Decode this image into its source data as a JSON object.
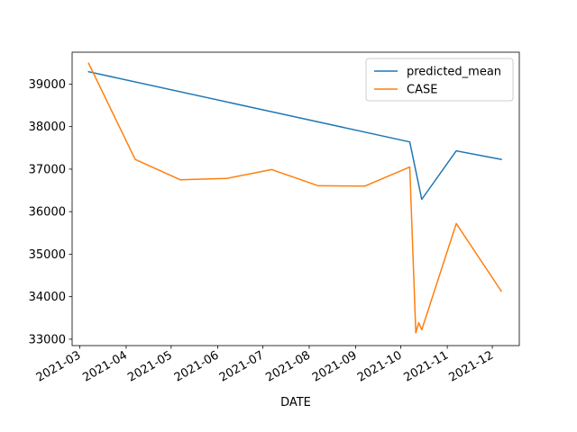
{
  "chart_data": {
    "type": "line",
    "xlabel": "DATE",
    "ylabel": "",
    "title": "",
    "x_ticks": [
      "2021-03",
      "2021-04",
      "2021-05",
      "2021-06",
      "2021-07",
      "2021-08",
      "2021-09",
      "2021-10",
      "2021-11",
      "2021-12"
    ],
    "y_ticks": [
      33000,
      34000,
      35000,
      36000,
      37000,
      38000,
      39000
    ],
    "xlim": [
      "2021-02-24",
      "2021-12-19"
    ],
    "ylim": [
      32850,
      39750
    ],
    "grid": false,
    "legend_position": "top-right",
    "series": [
      {
        "name": "predicted_mean",
        "color": "#1f77b4",
        "points": [
          [
            "2021-03-07",
            39290
          ],
          [
            "2021-10-07",
            37640
          ],
          [
            "2021-10-15",
            36290
          ],
          [
            "2021-11-07",
            37430
          ],
          [
            "2021-12-07",
            37230
          ]
        ]
      },
      {
        "name": "CASE",
        "color": "#ff7f0e",
        "points": [
          [
            "2021-03-07",
            39490
          ],
          [
            "2021-04-07",
            37230
          ],
          [
            "2021-05-07",
            36750
          ],
          [
            "2021-06-07",
            36780
          ],
          [
            "2021-07-07",
            36990
          ],
          [
            "2021-08-07",
            36610
          ],
          [
            "2021-09-07",
            36600
          ],
          [
            "2021-10-07",
            37050
          ],
          [
            "2021-10-11",
            33150
          ],
          [
            "2021-10-13",
            33390
          ],
          [
            "2021-10-15",
            33220
          ],
          [
            "2021-11-07",
            35720
          ],
          [
            "2021-12-07",
            34130
          ]
        ]
      }
    ]
  }
}
